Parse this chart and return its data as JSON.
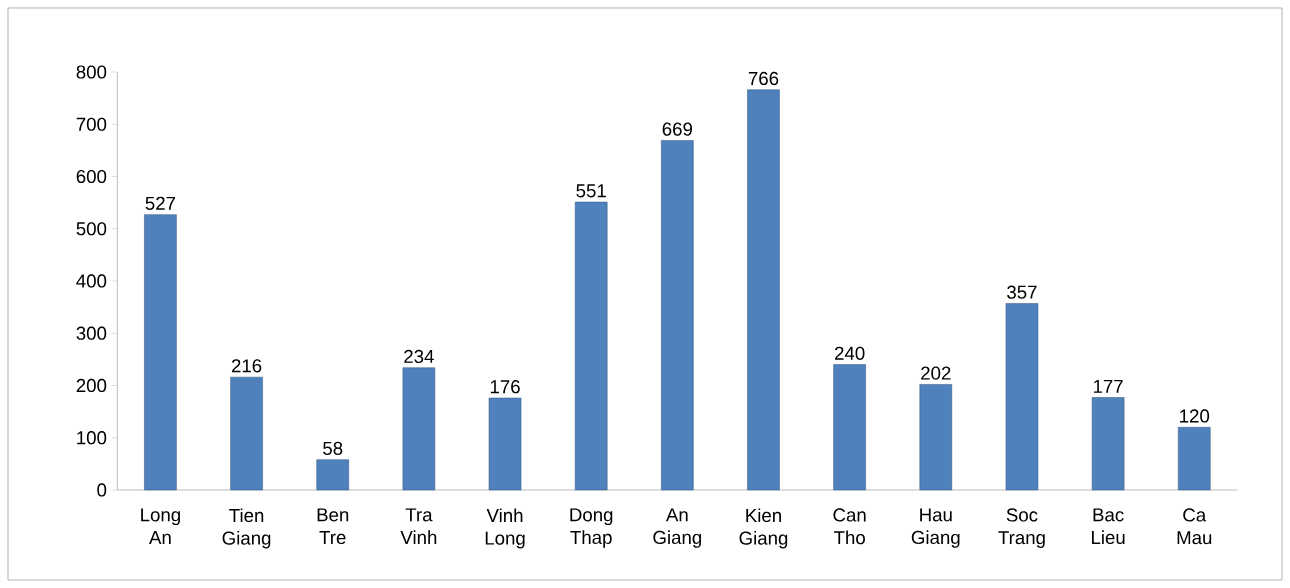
{
  "chart_data": {
    "type": "bar",
    "categories": [
      "Long An",
      "Tien Giang",
      "Ben Tre",
      "Tra Vinh",
      "Vinh Long",
      "Dong Thap",
      "An Giang",
      "Kien Giang",
      "Can Tho",
      "Hau Giang",
      "Soc Trang",
      "Bac Lieu",
      "Ca Mau"
    ],
    "values": [
      527,
      216,
      58,
      234,
      176,
      551,
      669,
      766,
      240,
      202,
      357,
      177,
      120
    ],
    "color": "#4f81bd",
    "ylim": [
      0,
      800
    ],
    "yticks": [
      0,
      100,
      200,
      300,
      400,
      500,
      600,
      700,
      800
    ],
    "data_labels": true
  }
}
